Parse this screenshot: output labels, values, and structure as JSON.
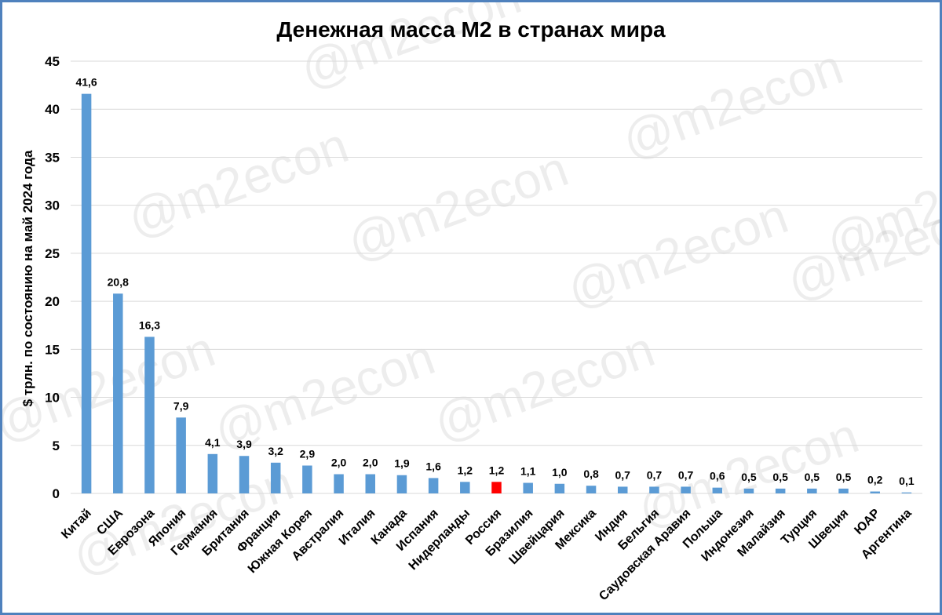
{
  "watermark": "@m2econ",
  "colors": {
    "bar": "#5b9bd5",
    "highlight": "#ff0000",
    "frame": "#4f81bd",
    "grid": "#d9d9d9"
  },
  "chart_data": {
    "type": "bar",
    "title": "Денежная масса М2 в странах мира",
    "ylabel": "$ трлн. по состоянию на май 2024 года",
    "xlabel": "",
    "ylim": [
      0,
      45
    ],
    "yticks": [
      0,
      5,
      10,
      15,
      20,
      25,
      30,
      35,
      40,
      45
    ],
    "grid": true,
    "legend": "none",
    "highlight_category": "Россия",
    "categories": [
      "Китай",
      "США",
      "Еврозона",
      "Япония",
      "Германия",
      "Британия",
      "Франция",
      "Южная Корея",
      "Австралия",
      "Италия",
      "Канада",
      "Испания",
      "Нидерланды",
      "Россия",
      "Бразилия",
      "Швейцария",
      "Мексика",
      "Индия",
      "Бельгия",
      "Саудовская Аравия",
      "Польша",
      "Индонезия",
      "Малайзия",
      "Турция",
      "Швеция",
      "ЮАР",
      "Аргентина"
    ],
    "values": [
      41.6,
      20.8,
      16.3,
      7.9,
      4.1,
      3.9,
      3.2,
      2.9,
      2.0,
      2.0,
      1.9,
      1.6,
      1.2,
      1.2,
      1.1,
      1.0,
      0.8,
      0.7,
      0.7,
      0.7,
      0.6,
      0.5,
      0.5,
      0.5,
      0.5,
      0.2,
      0.1
    ],
    "value_labels": [
      "41,6",
      "20,8",
      "16,3",
      "7,9",
      "4,1",
      "3,9",
      "3,2",
      "2,9",
      "2,0",
      "2,0",
      "1,9",
      "1,6",
      "1,2",
      "1,2",
      "1,1",
      "1,0",
      "0,8",
      "0,7",
      "0,7",
      "0,7",
      "0,6",
      "0,5",
      "0,5",
      "0,5",
      "0,5",
      "0,2",
      "0,1"
    ]
  }
}
